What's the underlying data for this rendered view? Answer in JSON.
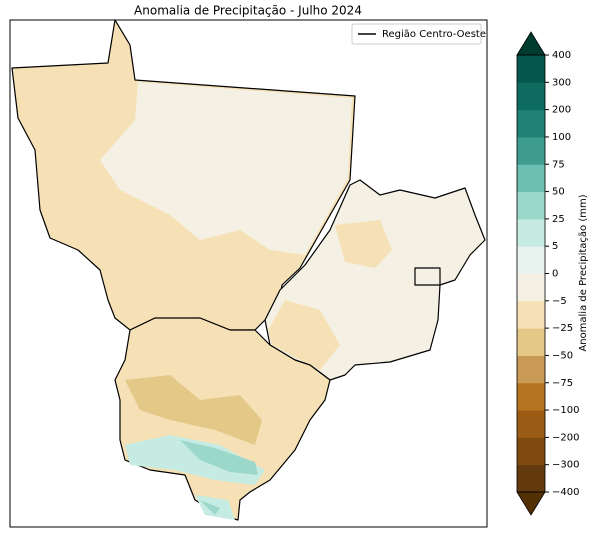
{
  "title": "Anomalia de Precipitação - Julho 2024",
  "legend": {
    "label": "Região Centro-Oeste"
  },
  "colorbar": {
    "label": "Anomalia de Precipitação (mm)",
    "ticks": [
      {
        "value": -400,
        "label": "−400"
      },
      {
        "value": -300,
        "label": "−300"
      },
      {
        "value": -200,
        "label": "−200"
      },
      {
        "value": -100,
        "label": "−100"
      },
      {
        "value": -75,
        "label": "−75"
      },
      {
        "value": -50,
        "label": "−50"
      },
      {
        "value": -25,
        "label": "−25"
      },
      {
        "value": -5,
        "label": "−5"
      },
      0,
      5,
      25,
      50,
      75,
      100,
      200,
      300,
      400
    ],
    "colors": [
      "#633a0e",
      "#7f4a0f",
      "#9a5c14",
      "#b5741f",
      "#c89a55",
      "#e3c888",
      "#f5e1b5",
      "#f5f0e4",
      "#e8f2ef",
      "#c6ebe2",
      "#9bd8ca",
      "#6cbfb1",
      "#3e9c8f",
      "#1f8076",
      "#0e6b5f",
      "#06574b"
    ],
    "under_color": "#543005",
    "over_color": "#003c30"
  }
}
